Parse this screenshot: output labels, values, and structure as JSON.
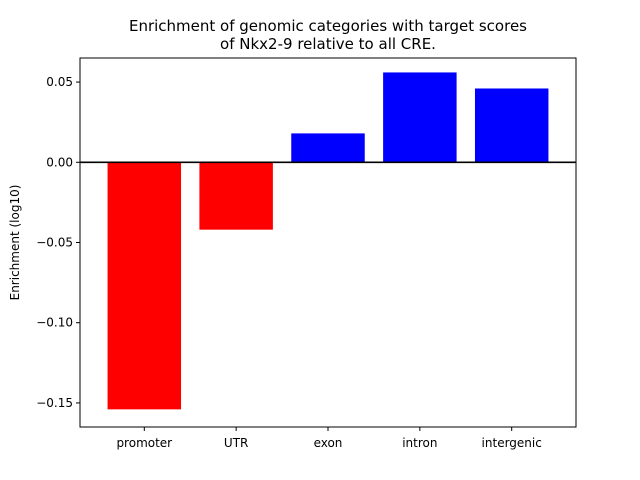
{
  "chart_data": {
    "type": "bar",
    "title_lines": [
      "Enrichment of genomic categories with target scores",
      "of Nkx2-9 relative to all CRE."
    ],
    "xlabel": "",
    "ylabel": "Enrichment (log10)",
    "categories": [
      "promoter",
      "UTR",
      "exon",
      "intron",
      "intergenic"
    ],
    "values": [
      -0.154,
      -0.042,
      0.018,
      0.056,
      0.046
    ],
    "bar_colors": [
      "#ff0000",
      "#ff0000",
      "#0000ff",
      "#0000ff",
      "#0000ff"
    ],
    "ylim": [
      -0.165,
      0.065
    ],
    "yticks": [
      0.05,
      0.0,
      -0.05,
      -0.1,
      -0.15
    ],
    "ytick_labels": [
      "0.05",
      "0.00",
      "−0.05",
      "−0.10",
      "−0.15"
    ],
    "zero_line": true,
    "grid": false,
    "legend": "none"
  }
}
